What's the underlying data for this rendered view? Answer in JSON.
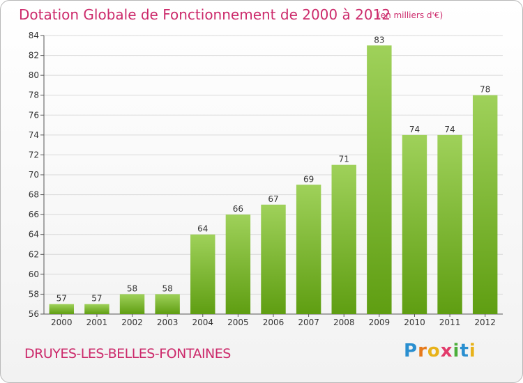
{
  "chart_data": {
    "type": "bar",
    "title": "Dotation Globale de Fonctionnement de 2000 à 2012",
    "subtitle": "(en milliers d'€)",
    "categories": [
      "2000",
      "2001",
      "2002",
      "2003",
      "2004",
      "2005",
      "2006",
      "2007",
      "2008",
      "2009",
      "2010",
      "2011",
      "2012"
    ],
    "values": [
      57,
      57,
      58,
      58,
      64,
      66,
      67,
      69,
      71,
      83,
      74,
      74,
      78
    ],
    "ylim": [
      56,
      84
    ],
    "yticks": [
      56,
      58,
      60,
      62,
      64,
      66,
      68,
      70,
      72,
      74,
      76,
      78,
      80,
      82,
      84
    ],
    "grid": true,
    "xlabel": "",
    "ylabel": ""
  },
  "footer": {
    "town": "DRUYES-LES-BELLES-FONTAINES",
    "logo": "Proxiti"
  },
  "colors": {
    "accent": "#cc2a6b",
    "bar_light": "#9fd15a",
    "bar_dark": "#5f9e12",
    "grid": "#d9d9d9"
  }
}
